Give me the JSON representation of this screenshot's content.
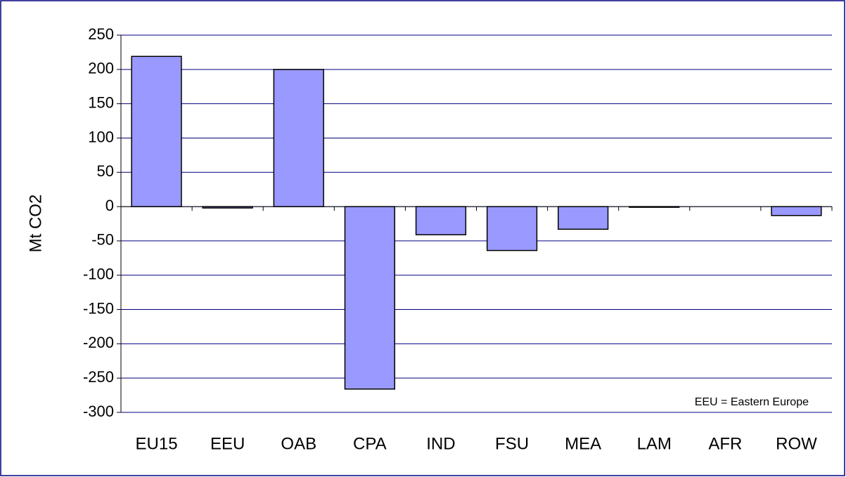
{
  "chart_data": {
    "type": "bar",
    "categories": [
      "EU15",
      "EEU",
      "OAB",
      "CPA",
      "IND",
      "FSU",
      "MEA",
      "LAM",
      "AFR",
      "ROW"
    ],
    "values": [
      219,
      -2,
      200,
      -266,
      -41,
      -64,
      -33,
      -1,
      0,
      -13
    ],
    "color": "#9999ff",
    "ylabel": "Mt CO2",
    "annotation": "EEU = Eastern Europe",
    "ylim": [
      -300,
      250
    ],
    "yticks": [
      -300,
      -250,
      -200,
      -150,
      -100,
      -50,
      0,
      50,
      100,
      150,
      200,
      250
    ],
    "grid": true
  }
}
